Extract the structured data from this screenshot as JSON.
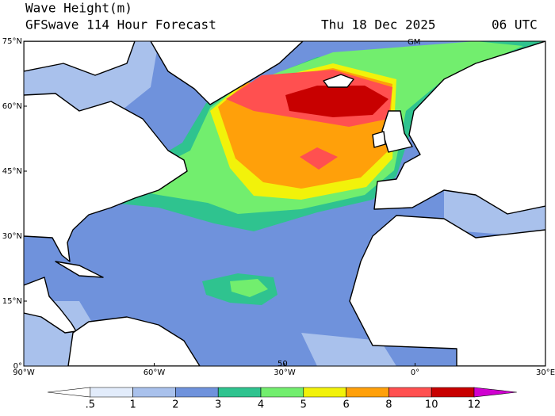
{
  "header": {
    "title": "Wave Height(m)",
    "subtitle": "GFSwave 114 Hour Forecast",
    "date": "Thu 18 Dec 2025",
    "time": "06 UTC"
  },
  "map": {
    "lat_labels": [
      "75°N",
      "60°N",
      "45°N",
      "30°N",
      "15°N",
      "0°"
    ],
    "lon_labels": [
      "90°W",
      "60°W",
      "30°W",
      "0°",
      "30°E"
    ],
    "annotations": [
      "GM",
      "50"
    ]
  },
  "colorbar": {
    "labels": [
      ".5",
      "1",
      "2",
      "3",
      "4",
      "5",
      "6",
      "8",
      "10",
      "12"
    ],
    "colors": [
      "#ffffff",
      "#e2ecfb",
      "#a9c1ec",
      "#6f92dc",
      "#2fc38f",
      "#72ee6e",
      "#f2f20a",
      "#ffa00a",
      "#ff5050",
      "#c80000",
      "#d000d0"
    ]
  }
}
